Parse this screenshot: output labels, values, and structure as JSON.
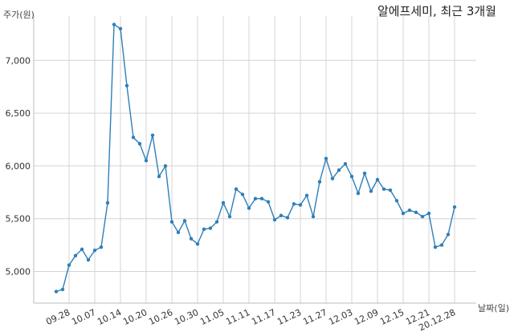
{
  "chart_data": {
    "type": "line",
    "title": "알에프세미, 최근 3개월",
    "ylabel": "주가(원)",
    "xlabel": "날짜(일)",
    "ylim": [
      4700,
      7420
    ],
    "yticks": [
      5000,
      5500,
      6000,
      6500,
      7000
    ],
    "ytick_labels": [
      "5,000",
      "5,500",
      "6,000",
      "6,500",
      "7,000"
    ],
    "tick_labels": [
      "09.28",
      "10.07",
      "10.14",
      "10.20",
      "10.26",
      "10.30",
      "11.05",
      "11.11",
      "11.17",
      "11.23",
      "11.27",
      "12.03",
      "12.09",
      "12.15",
      "12.21",
      "20.12.28"
    ],
    "grid": true,
    "color": "#2e7fb8",
    "x": [
      "09.24",
      "09.25",
      "09.28",
      "09.29",
      "10.05",
      "10.06",
      "10.07",
      "10.08",
      "10.12",
      "10.13",
      "10.14",
      "10.15",
      "10.16",
      "10.19",
      "10.20",
      "10.21",
      "10.22",
      "10.23",
      "10.26",
      "10.27",
      "10.28",
      "10.29",
      "10.30",
      "11.02",
      "11.03",
      "11.04",
      "11.05",
      "11.06",
      "11.09",
      "11.10",
      "11.11",
      "11.12",
      "11.13",
      "11.16",
      "11.17",
      "11.18",
      "11.19",
      "11.20",
      "11.23",
      "11.24",
      "11.25",
      "11.26",
      "11.27",
      "11.30",
      "12.01",
      "12.02",
      "12.03",
      "12.04",
      "12.07",
      "12.08",
      "12.09",
      "12.10",
      "12.11",
      "12.14",
      "12.15",
      "12.16",
      "12.17",
      "12.18",
      "12.21",
      "12.22",
      "12.23",
      "12.24",
      "12.28"
    ],
    "values": [
      4810,
      4830,
      5060,
      5150,
      5210,
      5110,
      5200,
      5230,
      5650,
      7340,
      7300,
      6760,
      6270,
      6210,
      6050,
      6290,
      5900,
      6000,
      5470,
      5370,
      5480,
      5310,
      5260,
      5400,
      5410,
      5470,
      5650,
      5520,
      5780,
      5730,
      5600,
      5690,
      5690,
      5660,
      5490,
      5530,
      5510,
      5640,
      5630,
      5720,
      5520,
      5850,
      6070,
      5880,
      5960,
      6020,
      5900,
      5740,
      5930,
      5760,
      5870,
      5780,
      5770,
      5670,
      5550,
      5580,
      5560,
      5520,
      5550,
      5230,
      5250,
      5350,
      5610
    ]
  }
}
